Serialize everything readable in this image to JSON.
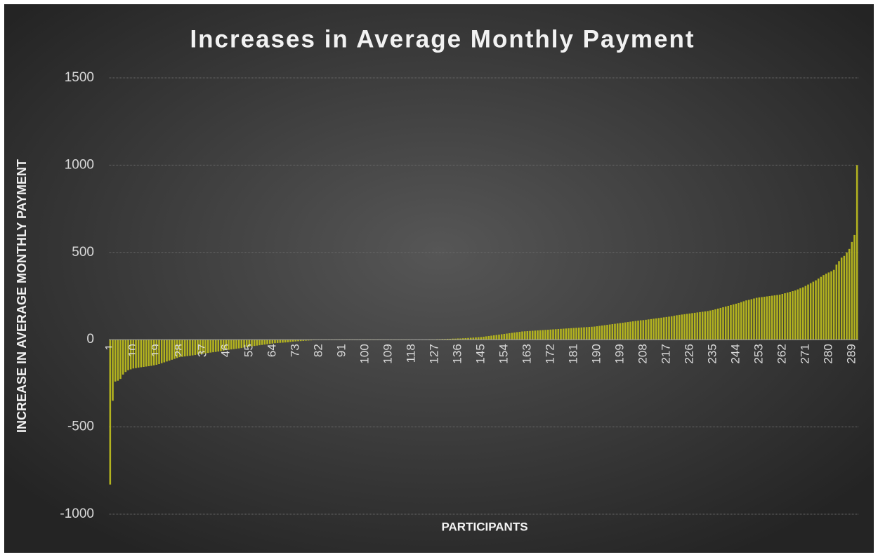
{
  "chart_data": {
    "type": "bar",
    "title": "Increases in Average Monthly Payment",
    "y_label": "INCREASE IN AVERAGE MONTHLY PAYMENT",
    "x_label": "PARTICIPANTS",
    "color": "#b3b31f",
    "grid": true,
    "ylim": [
      -1000,
      1500
    ],
    "yticks": [
      -1000,
      -500,
      0,
      500,
      1000,
      1500
    ],
    "categories": [
      "1",
      null,
      null,
      null,
      null,
      null,
      null,
      null,
      null,
      "10",
      null,
      null,
      null,
      null,
      null,
      null,
      null,
      null,
      "19",
      null,
      null,
      null,
      null,
      null,
      null,
      null,
      null,
      "28",
      null,
      null,
      null,
      null,
      null,
      null,
      null,
      null,
      "37",
      null,
      null,
      null,
      null,
      null,
      null,
      null,
      null,
      "46",
      null,
      null,
      null,
      null,
      null,
      null,
      null,
      null,
      "55",
      null,
      null,
      null,
      null,
      null,
      null,
      null,
      null,
      "64",
      null,
      null,
      null,
      null,
      null,
      null,
      null,
      null,
      "73",
      null,
      null,
      null,
      null,
      null,
      null,
      null,
      null,
      "82",
      null,
      null,
      null,
      null,
      null,
      null,
      null,
      null,
      "91",
      null,
      null,
      null,
      null,
      null,
      null,
      null,
      null,
      "100",
      null,
      null,
      null,
      null,
      null,
      null,
      null,
      null,
      "109",
      null,
      null,
      null,
      null,
      null,
      null,
      null,
      null,
      "118",
      null,
      null,
      null,
      null,
      null,
      null,
      null,
      null,
      "127",
      null,
      null,
      null,
      null,
      null,
      null,
      null,
      null,
      "136",
      null,
      null,
      null,
      null,
      null,
      null,
      null,
      null,
      "145",
      null,
      null,
      null,
      null,
      null,
      null,
      null,
      null,
      "154",
      null,
      null,
      null,
      null,
      null,
      null,
      null,
      null,
      "163",
      null,
      null,
      null,
      null,
      null,
      null,
      null,
      null,
      "172",
      null,
      null,
      null,
      null,
      null,
      null,
      null,
      null,
      "181",
      null,
      null,
      null,
      null,
      null,
      null,
      null,
      null,
      "190",
      null,
      null,
      null,
      null,
      null,
      null,
      null,
      null,
      "199",
      null,
      null,
      null,
      null,
      null,
      null,
      null,
      null,
      "208",
      null,
      null,
      null,
      null,
      null,
      null,
      null,
      null,
      "217",
      null,
      null,
      null,
      null,
      null,
      null,
      null,
      null,
      "226",
      null,
      null,
      null,
      null,
      null,
      null,
      null,
      null,
      "235",
      null,
      null,
      null,
      null,
      null,
      null,
      null,
      null,
      "244",
      null,
      null,
      null,
      null,
      null,
      null,
      null,
      null,
      "253",
      null,
      null,
      null,
      null,
      null,
      null,
      null,
      null,
      "262",
      null,
      null,
      null,
      null,
      null,
      null,
      null,
      null,
      "271",
      null,
      null,
      null,
      null,
      null,
      null,
      null,
      null,
      "280",
      null,
      null,
      null,
      null,
      null,
      null,
      null,
      null,
      "289",
      null,
      null
    ],
    "values": [
      -830,
      -350,
      -240,
      -235,
      -225,
      -200,
      -185,
      -175,
      -170,
      -165,
      -163,
      -160,
      -158,
      -156,
      -154,
      -152,
      -150,
      -147,
      -144,
      -140,
      -135,
      -130,
      -125,
      -120,
      -115,
      -110,
      -105,
      -100,
      -98,
      -96,
      -94,
      -92,
      -90,
      -88,
      -85,
      -82,
      -80,
      -78,
      -76,
      -74,
      -72,
      -70,
      -68,
      -66,
      -63,
      -60,
      -58,
      -56,
      -54,
      -52,
      -50,
      -48,
      -45,
      -42,
      -40,
      -38,
      -36,
      -34,
      -32,
      -30,
      -28,
      -26,
      -24,
      -22,
      -20,
      -19,
      -18,
      -17,
      -16,
      -15,
      -13,
      -11,
      -10,
      -9,
      -8,
      -7,
      -6,
      -5,
      -4,
      -3,
      -2,
      -2,
      -2,
      -1,
      -1,
      -1,
      -1,
      -1,
      -1,
      -1,
      0,
      0,
      0,
      0,
      0,
      0,
      0,
      0,
      0,
      0,
      0,
      0,
      0,
      0,
      0,
      0,
      0,
      0,
      0,
      0,
      0,
      0,
      0,
      0,
      0,
      0,
      0,
      1,
      1,
      1,
      1,
      1,
      1,
      1,
      2,
      2,
      2,
      3,
      3,
      4,
      4,
      5,
      5,
      6,
      6,
      7,
      7,
      8,
      9,
      10,
      11,
      12,
      13,
      14,
      15,
      17,
      19,
      21,
      23,
      25,
      27,
      29,
      31,
      33,
      35,
      37,
      39,
      41,
      43,
      45,
      47,
      48,
      49,
      50,
      51,
      52,
      53,
      54,
      55,
      56,
      57,
      58,
      59,
      60,
      61,
      62,
      63,
      64,
      65,
      66,
      67,
      68,
      69,
      70,
      71,
      72,
      73,
      74,
      75,
      77,
      79,
      81,
      83,
      85,
      87,
      89,
      91,
      93,
      95,
      97,
      99,
      101,
      103,
      105,
      107,
      109,
      111,
      112,
      114,
      116,
      118,
      120,
      122,
      124,
      126,
      128,
      130,
      132,
      134,
      137,
      140,
      142,
      144,
      146,
      148,
      150,
      152,
      154,
      156,
      158,
      160,
      162,
      164,
      167,
      170,
      174,
      178,
      182,
      186,
      190,
      194,
      198,
      202,
      206,
      210,
      215,
      220,
      225,
      228,
      232,
      236,
      240,
      242,
      244,
      246,
      248,
      250,
      252,
      254,
      256,
      258,
      262,
      266,
      270,
      274,
      278,
      282,
      288,
      295,
      300,
      308,
      316,
      324,
      332,
      340,
      350,
      360,
      370,
      378,
      385,
      392,
      400,
      430,
      450,
      470,
      480,
      500,
      520,
      560,
      600,
      1000
    ]
  }
}
